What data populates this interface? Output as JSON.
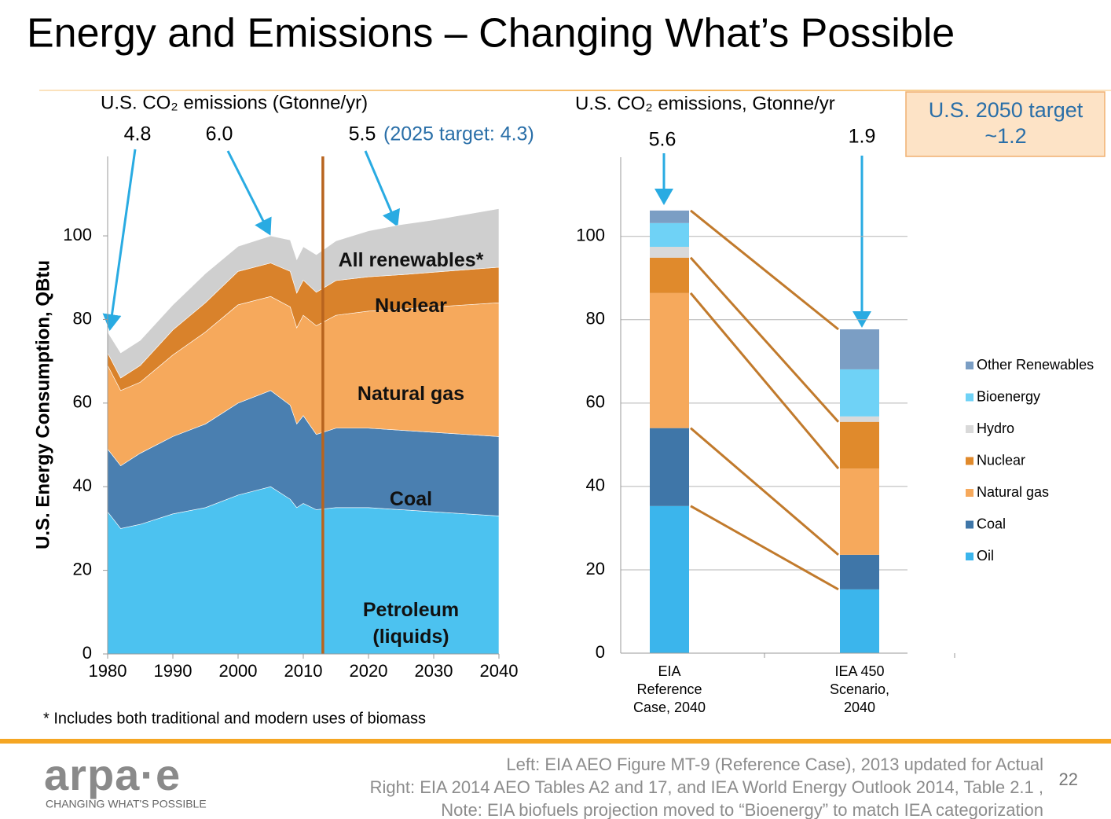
{
  "slide": {
    "title": "Energy and Emissions – Changing What’s Possible",
    "footnote": "* Includes both traditional and modern uses of biomass",
    "sources": [
      "Left:  EIA AEO Figure MT-9 (Reference Case), 2013 updated for Actual",
      "Right:  EIA 2014 AEO Tables A2 and 17, and IEA World Energy Outlook 2014, Table 2.1 ,",
      "Note: EIA biofuels projection moved to “Bioenergy” to match IEA categorization"
    ],
    "page_number": 22,
    "logo": "arpa·e",
    "tagline": "CHANGING WHAT'S POSSIBLE"
  },
  "chart_data": [
    {
      "type": "area",
      "stacked": true,
      "title": "U.S. CO₂ emissions (Gtonne/yr)",
      "ylabel": "U.S. Energy Consumption, QBtu",
      "x": [
        1980,
        1982,
        1985,
        1990,
        1995,
        2000,
        2005,
        2008,
        2009,
        2010,
        2012,
        2015,
        2020,
        2025,
        2030,
        2040
      ],
      "series": [
        {
          "name": "Petroleum (liquids)",
          "color": "#4cc2f0",
          "values": [
            34,
            30,
            31,
            33.5,
            35,
            38,
            40,
            37,
            35,
            36,
            34.5,
            35,
            35,
            34.5,
            34,
            33
          ]
        },
        {
          "name": "Coal",
          "color": "#4a7fb0",
          "values": [
            15,
            15,
            17,
            18.5,
            20,
            22,
            23,
            22.5,
            20,
            21,
            18,
            19,
            19,
            19,
            19,
            19
          ]
        },
        {
          "name": "Natural gas",
          "color": "#f6a95c",
          "values": [
            20,
            18,
            17,
            19.5,
            22,
            23.5,
            22.5,
            23.5,
            23,
            24,
            26,
            27,
            28,
            29,
            30,
            32
          ]
        },
        {
          "name": "Nuclear",
          "color": "#d9822b",
          "values": [
            3,
            3,
            4,
            6,
            7,
            8,
            8,
            8.5,
            8.3,
            8.4,
            8,
            8.3,
            8.2,
            8.2,
            8.3,
            8.5
          ]
        },
        {
          "name": "All renewables*",
          "color": "#cfcfcf",
          "values": [
            5,
            6,
            6,
            6,
            7,
            6,
            6.5,
            7.5,
            8,
            8,
            9,
            9.5,
            11,
            12,
            12.5,
            14
          ]
        }
      ],
      "xlim": [
        1980,
        2040
      ],
      "xticks": [
        1980,
        1990,
        2000,
        2010,
        2020,
        2030,
        2040
      ],
      "ylim": [
        0,
        119
      ],
      "yticks": [
        0,
        20,
        40,
        60,
        80,
        100
      ],
      "annotations": [
        4.8,
        {
          "value": 6,
          "label": "6.0"
        },
        5.5
      ],
      "target_note": "(2025 target: 4.3)",
      "projection_start": 2013
    },
    {
      "type": "bar",
      "stacked": true,
      "title": "U.S. CO₂ emissions, Gtonne/yr",
      "categories": [
        "EIA Reference Case, 2040",
        "IEA 450 Scenario, 2040"
      ],
      "series": [
        {
          "name": "Oil",
          "color": "#3bb5ec",
          "values": [
            35.3,
            15.3
          ]
        },
        {
          "name": "Coal",
          "color": "#3f76a8",
          "values": [
            18.7,
            8.3
          ]
        },
        {
          "name": "Natural gas",
          "color": "#f6a95c",
          "values": [
            32.4,
            20.7
          ]
        },
        {
          "name": "Nuclear",
          "color": "#e08a2c",
          "values": [
            8.5,
            11.2
          ]
        },
        {
          "name": "Hydro",
          "color": "#d9d9d9",
          "values": [
            2.6,
            1.3
          ]
        },
        {
          "name": "Bioenergy",
          "color": "#6fd2f6",
          "values": [
            5.7,
            11.3
          ]
        },
        {
          "name": "Other Renewables",
          "color": "#7b9ec4",
          "values": [
            3,
            9.6
          ]
        }
      ],
      "ylim": [
        0,
        119
      ],
      "yticks": [
        0,
        20,
        40,
        60,
        80,
        100
      ],
      "grid": true,
      "legend": "right",
      "annotations": [
        5.6,
        1.9
      ],
      "target_box": "U.S. 2050 target ~1.2"
    }
  ]
}
